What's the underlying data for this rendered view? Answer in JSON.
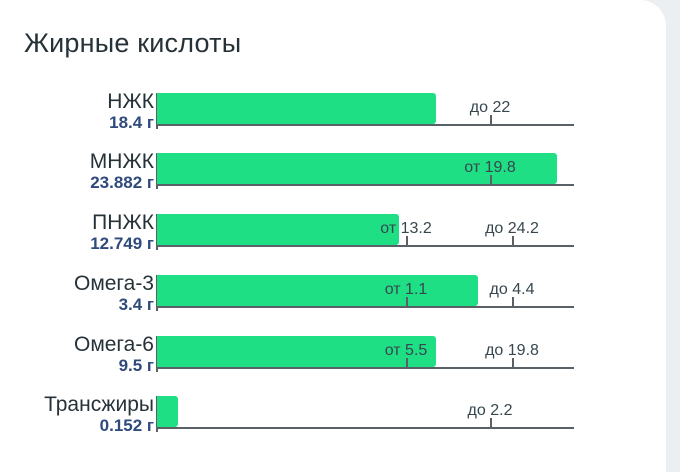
{
  "title": "Жирные кислоты",
  "colors": {
    "bar": "#1fdf84",
    "amount": "#2f4a7c",
    "axis": "#596066"
  },
  "rows": [
    {
      "name": "НЖК",
      "amount": "18.4 г",
      "fill": 0.67,
      "from": "",
      "to": "до 22"
    },
    {
      "name": "МНЖК",
      "amount": "23.882 г",
      "fill": 0.96,
      "from": "от 19.8",
      "to": ""
    },
    {
      "name": "ПНЖК",
      "amount": "12.749 г",
      "fill": 0.58,
      "from": "от 13.2",
      "to": "до 24.2"
    },
    {
      "name": "Омега-3",
      "amount": "3.4 г",
      "fill": 0.77,
      "from": "от 1.1",
      "to": "до 4.4"
    },
    {
      "name": "Омега-6",
      "amount": "9.5 г",
      "fill": 0.67,
      "from": "от 5.5",
      "to": "до 19.8"
    },
    {
      "name": "Трансжиры",
      "amount": "0.152 г",
      "fill": 0.05,
      "from": "",
      "to": "до 2.2"
    }
  ]
}
